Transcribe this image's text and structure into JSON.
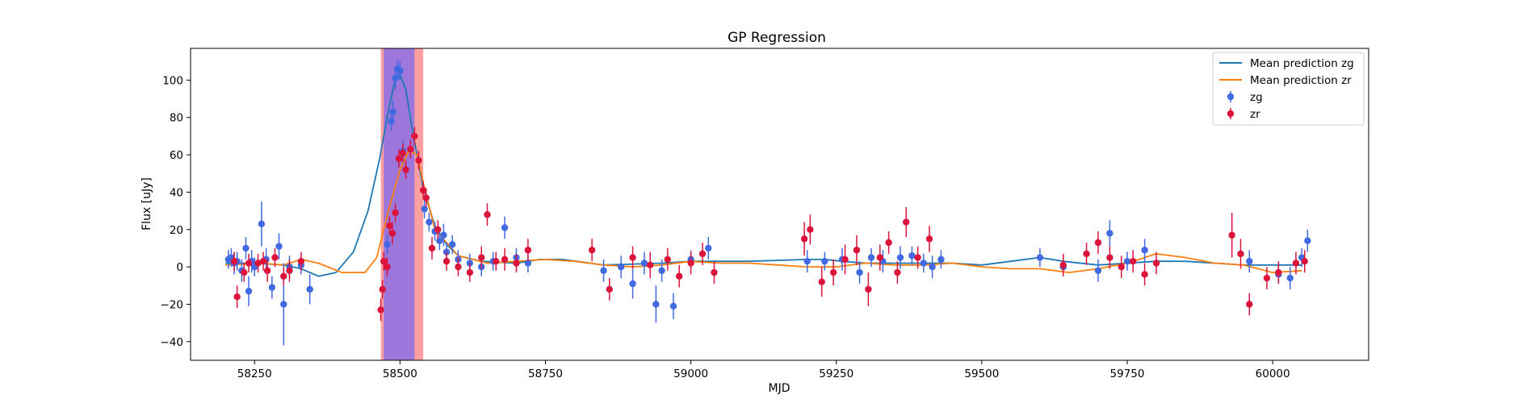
{
  "chart_data": {
    "type": "scatter",
    "title": "GP Regression",
    "xlabel": "MJD",
    "ylabel": "Flux [uJy]",
    "xlim": [
      58140,
      60165
    ],
    "ylim": [
      -50,
      117
    ],
    "xticks": [
      58250,
      58500,
      58750,
      59000,
      59250,
      59500,
      59750,
      60000
    ],
    "yticks": [
      -40,
      -20,
      0,
      20,
      40,
      60,
      80,
      100
    ],
    "grid": false,
    "legend_position": "top-right",
    "legend": [
      "Mean prediction zg",
      "Mean prediction zr",
      "zg",
      "zr"
    ],
    "colors": {
      "zg_line": "#1f77b4",
      "zr_line": "#ff7f0e",
      "zg_points": "#4169e1",
      "zr_points": "#dc143c",
      "span_zg": "#7b68ee",
      "span_zr": "#ff6b6b"
    },
    "shaded_spans": [
      {
        "x_start": 58467,
        "x_end": 58540,
        "color": "#ff6b6b"
      },
      {
        "x_start": 58472,
        "x_end": 58525,
        "color": "#7b68ee"
      }
    ],
    "lines": [
      {
        "name": "Mean prediction zg",
        "x": [
          58200,
          58250,
          58300,
          58330,
          58360,
          58390,
          58420,
          58445,
          58465,
          58478,
          58490,
          58500,
          58510,
          58522,
          58540,
          58560,
          58580,
          58600,
          58640,
          58700,
          58740,
          58780,
          58850,
          58950,
          59000,
          59100,
          59200,
          59230,
          59260,
          59300,
          59350,
          59400,
          59450,
          59500,
          59550,
          59600,
          59640,
          59700,
          59750,
          59800,
          59850,
          59900,
          59950,
          60000,
          60050
        ],
        "y": [
          2,
          2,
          1,
          -1,
          -5,
          -3,
          8,
          30,
          58,
          80,
          98,
          103,
          95,
          72,
          42,
          22,
          12,
          6,
          3,
          2,
          4,
          4,
          1,
          2,
          3,
          3,
          4,
          4,
          3,
          2,
          2,
          2,
          2,
          1,
          3,
          5,
          3,
          1,
          2,
          3,
          3,
          2,
          1,
          1,
          1
        ]
      },
      {
        "name": "Mean prediction zr",
        "x": [
          58200,
          58260,
          58300,
          58330,
          58360,
          58400,
          58440,
          58460,
          58480,
          58500,
          58515,
          58530,
          58540,
          58560,
          58600,
          58650,
          58700,
          58750,
          58800,
          58850,
          58900,
          58950,
          59000,
          59050,
          59100,
          59150,
          59200,
          59250,
          59300,
          59350,
          59400,
          59450,
          59500,
          59550,
          59600,
          59650,
          59700,
          59750,
          59800,
          59850,
          59900,
          59950,
          60000,
          60050
        ],
        "y": [
          1,
          2,
          1,
          4,
          2,
          -3,
          -3,
          5,
          30,
          52,
          62,
          60,
          45,
          20,
          6,
          2,
          3,
          4,
          3,
          1,
          0,
          1,
          3,
          2,
          2,
          1,
          0,
          0,
          2,
          1,
          1,
          2,
          0,
          -1,
          -1,
          -3,
          -1,
          2,
          7,
          5,
          2,
          1,
          -3,
          -2
        ]
      }
    ],
    "points": [
      {
        "name": "zg",
        "x": [
          58205,
          58210,
          58215,
          58220,
          58228,
          58235,
          58240,
          58245,
          58250,
          58262,
          58270,
          58280,
          58292,
          58300,
          58310,
          58330,
          58345,
          58478,
          58485,
          58488,
          58492,
          58496,
          58500,
          58505,
          58542,
          58550,
          58560,
          58568,
          58575,
          58580,
          58590,
          58600,
          58620,
          58640,
          58660,
          58680,
          58700,
          58720,
          58850,
          58880,
          58900,
          58920,
          58940,
          58950,
          58970,
          59000,
          59030,
          59200,
          59230,
          59260,
          59290,
          59310,
          59330,
          59360,
          59380,
          59400,
          59415,
          59430,
          59600,
          59640,
          59700,
          59720,
          59750,
          59780,
          59960,
          60010,
          60030,
          60050,
          60060
        ],
        "y": [
          4,
          5,
          2,
          3,
          -2,
          10,
          -13,
          3,
          0,
          23,
          4,
          -11,
          11,
          -20,
          0,
          1,
          -12,
          12,
          78,
          83,
          101,
          106,
          105,
          62,
          31,
          24,
          19,
          14,
          17,
          8,
          12,
          4,
          2,
          0,
          3,
          21,
          5,
          2,
          -2,
          0,
          -9,
          2,
          -20,
          -2,
          -21,
          4,
          10,
          3,
          3,
          4,
          -3,
          5,
          3,
          5,
          6,
          2,
          0,
          4,
          5,
          0,
          -2,
          18,
          3,
          9,
          3,
          -4,
          -6,
          5,
          14
        ],
        "err": [
          5,
          5,
          6,
          5,
          6,
          6,
          8,
          6,
          5,
          12,
          6,
          6,
          7,
          22,
          6,
          5,
          8,
          5,
          5,
          6,
          6,
          5,
          5,
          6,
          5,
          5,
          5,
          5,
          6,
          5,
          5,
          5,
          5,
          5,
          5,
          6,
          5,
          5,
          6,
          6,
          8,
          6,
          10,
          6,
          7,
          5,
          6,
          6,
          5,
          6,
          6,
          5,
          6,
          6,
          5,
          5,
          6,
          5,
          5,
          5,
          6,
          7,
          5,
          6,
          6,
          5,
          6,
          5,
          6
        ]
      },
      {
        "name": "zr",
        "x": [
          58215,
          58220,
          58232,
          58240,
          58256,
          58265,
          58272,
          58285,
          58300,
          58310,
          58330,
          58467,
          58470,
          58472,
          58478,
          58482,
          58487,
          58492,
          58498,
          58505,
          58510,
          58518,
          58525,
          58532,
          58540,
          58545,
          58555,
          58565,
          58580,
          58600,
          58620,
          58640,
          58650,
          58665,
          58680,
          58700,
          58720,
          58830,
          58860,
          58900,
          58930,
          58960,
          58980,
          59000,
          59020,
          59040,
          59195,
          59205,
          59225,
          59245,
          59265,
          59285,
          59305,
          59325,
          59340,
          59355,
          59370,
          59390,
          59410,
          59640,
          59680,
          59700,
          59720,
          59740,
          59760,
          59780,
          59800,
          59930,
          59945,
          59960,
          59990,
          60010,
          60040,
          60055
        ],
        "y": [
          3,
          -16,
          -3,
          2,
          2,
          3,
          -2,
          5,
          -5,
          -2,
          3,
          -23,
          -12,
          3,
          0,
          22,
          18,
          29,
          58,
          61,
          52,
          63,
          70,
          57,
          41,
          37,
          10,
          20,
          3,
          0,
          -3,
          5,
          28,
          3,
          4,
          2,
          9,
          9,
          -12,
          5,
          1,
          4,
          -5,
          2,
          7,
          -3,
          15,
          20,
          -8,
          -3,
          4,
          9,
          -12,
          5,
          13,
          -3,
          24,
          5,
          15,
          1,
          7,
          13,
          5,
          0,
          3,
          -4,
          2,
          17,
          7,
          -20,
          -6,
          -3,
          2,
          3
        ],
        "err": [
          5,
          6,
          5,
          5,
          5,
          5,
          6,
          5,
          5,
          6,
          5,
          6,
          5,
          5,
          5,
          5,
          6,
          5,
          5,
          5,
          5,
          5,
          5,
          5,
          5,
          5,
          6,
          5,
          5,
          5,
          5,
          6,
          6,
          5,
          6,
          5,
          6,
          6,
          6,
          6,
          7,
          6,
          6,
          6,
          6,
          6,
          9,
          8,
          8,
          7,
          8,
          8,
          9,
          7,
          6,
          6,
          8,
          6,
          7,
          6,
          6,
          6,
          6,
          6,
          6,
          6,
          6,
          12,
          8,
          6,
          6,
          6,
          6,
          6
        ]
      }
    ]
  }
}
